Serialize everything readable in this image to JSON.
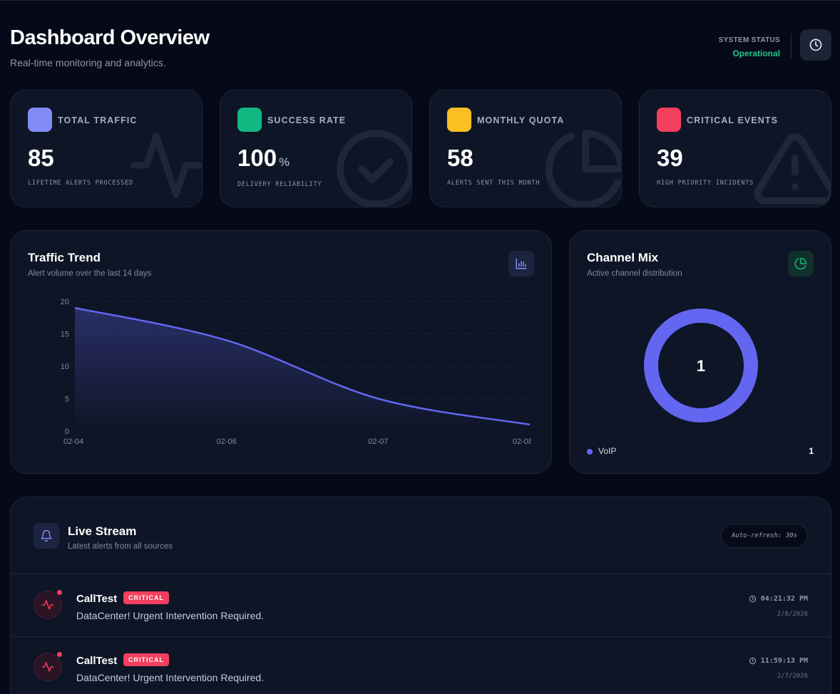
{
  "header": {
    "title": "Dashboard Overview",
    "subtitle": "Real-time monitoring and analytics.",
    "status_label": "SYSTEM STATUS",
    "status_value": "Operational"
  },
  "stats": [
    {
      "title": "TOTAL TRAFFIC",
      "value": "85",
      "unit": "",
      "caption": "LIFETIME ALERTS PROCESSED",
      "color": "#818cf8"
    },
    {
      "title": "SUCCESS RATE",
      "value": "100",
      "unit": "%",
      "caption": "DELIVERY RELIABILITY",
      "color": "#10b981"
    },
    {
      "title": "MONTHLY QUOTA",
      "value": "58",
      "unit": "",
      "caption": "ALERTS SENT THIS MONTH",
      "color": "#fbbf24"
    },
    {
      "title": "CRITICAL EVENTS",
      "value": "39",
      "unit": "",
      "caption": "HIGH PRIORITY INCIDENTS",
      "color": "#f43f5e"
    }
  ],
  "traffic": {
    "title": "Traffic Trend",
    "subtitle": "Alert volume over the last 14 days"
  },
  "channel": {
    "title": "Channel Mix",
    "subtitle": "Active channel distribution",
    "total": "1",
    "legend": [
      {
        "label": "VoIP",
        "value": "1"
      }
    ]
  },
  "stream": {
    "title": "Live Stream",
    "subtitle": "Latest alerts from all sources",
    "refresh": "Auto-refresh: 30s",
    "alerts": [
      {
        "title": "CallTest",
        "badge": "CRITICAL",
        "message": "DataCenter! Urgent Intervention Required.",
        "time": "04:21:32 PM",
        "date": "2/8/2026"
      },
      {
        "title": "CallTest",
        "badge": "CRITICAL",
        "message": "DataCenter! Urgent Intervention Required.",
        "time": "11:59:13 PM",
        "date": "2/7/2026"
      }
    ]
  },
  "chart_data": [
    {
      "type": "area",
      "title": "Traffic Trend",
      "x": [
        "02-04",
        "02-06",
        "02-07",
        "02-08"
      ],
      "values": [
        19,
        14,
        5,
        1
      ],
      "xlabel": "",
      "ylabel": "",
      "ylim": [
        0,
        20
      ],
      "yticks": [
        0,
        5,
        10,
        15,
        20
      ],
      "grid": true,
      "color": "#6366f1"
    },
    {
      "type": "pie",
      "title": "Channel Mix",
      "categories": [
        "VoIP"
      ],
      "values": [
        1
      ],
      "colors": [
        "#6366f1"
      ]
    }
  ]
}
